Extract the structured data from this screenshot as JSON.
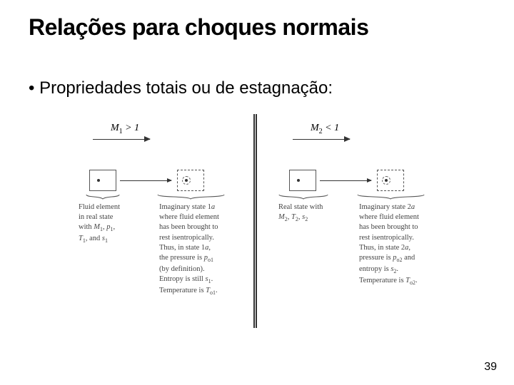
{
  "title": "Relações para choques normais",
  "bullet": "Propriedades totais ou de estagnação:",
  "page_num": "39",
  "figure": {
    "mach1": "M<sub>1</sub> > 1",
    "mach2": "M<sub>2</sub> < 1",
    "captions": {
      "real1": "Fluid element<br>in real state<br>with <span class=\"ital\">M</span><sub>1</sub>, <span class=\"ital\">p</span><sub>1</sub>,<br><span class=\"ital\">T</span><sub>1</sub>, and <span class=\"ital\">s</span><sub>1</sub>",
      "imag1": "Imaginary state 1<span class=\"ital\">a</span><br>where fluid element<br>has been brought to<br>rest isentropically.<br>Thus, in state 1<span class=\"ital\">a</span>,<br>the pressure is <span class=\"ital\">p</span><sub>o1</sub><br>(by definition).<br>Entropy is still <span class=\"ital\">s</span><sub>1</sub>.<br>Temperature is <span class=\"ital\">T</span><sub>o1</sub>.",
      "real2": "Real state with<br><span class=\"ital\">M</span><sub>2</sub>, <span class=\"ital\">T</span><sub>2</sub>, <span class=\"ital\">s</span><sub>2</sub>",
      "imag2": "Imaginary state 2<span class=\"ital\">a</span><br>where fluid element<br>has been brought to<br>rest isentropically.<br>Thus, in state 2<span class=\"ital\">a</span>,<br>pressure is <span class=\"ital\">p</span><sub>o2</sub> and<br>entropy is <span class=\"ital\">s</span><sub>2</sub>.<br>Temperature is <span class=\"ital\">T</span><sub>o2</sub>."
    }
  }
}
